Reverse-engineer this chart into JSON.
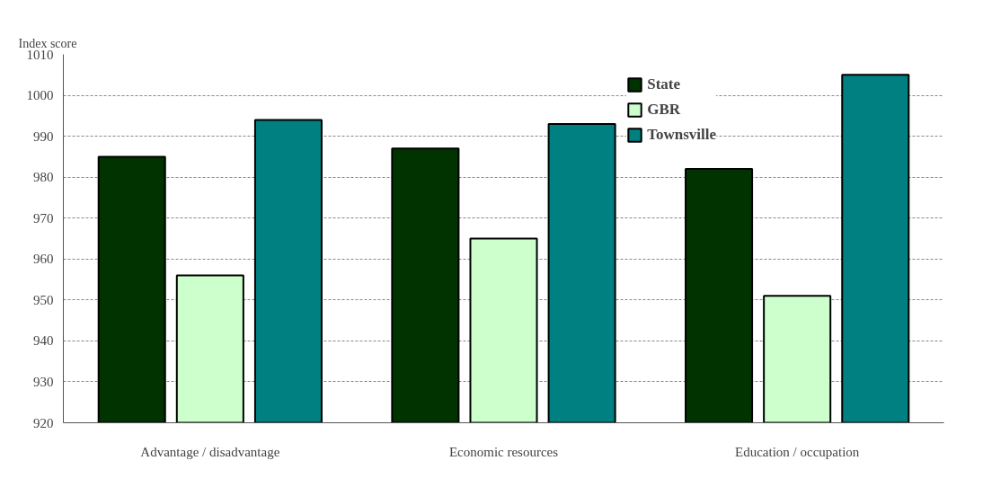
{
  "chart_data": {
    "type": "bar",
    "ylabel": "Index score",
    "categories": [
      "Advantage / disadvantage",
      "Economic resources",
      "Education / occupation"
    ],
    "series": [
      {
        "name": "State",
        "color": "#003300",
        "values": [
          985,
          987,
          982
        ]
      },
      {
        "name": "GBR",
        "color": "#ccffcc",
        "values": [
          956,
          965,
          951
        ]
      },
      {
        "name": "Townsville",
        "color": "#008080",
        "values": [
          994,
          993,
          1005
        ]
      }
    ],
    "ylim": [
      920,
      1010
    ],
    "yticks": [
      920,
      930,
      940,
      950,
      960,
      970,
      980,
      990,
      1000,
      1010
    ],
    "grid": "y",
    "legend": "top right"
  }
}
